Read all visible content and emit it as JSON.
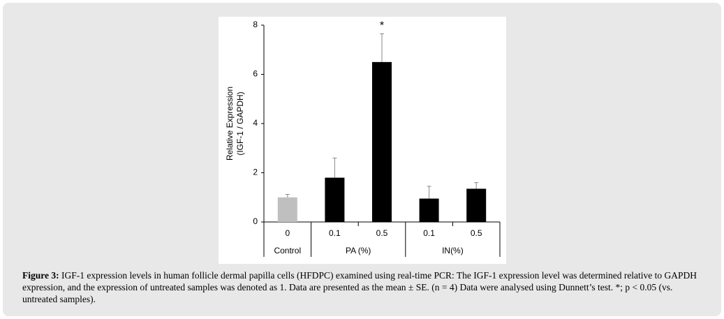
{
  "chart_data": {
    "type": "bar",
    "y_label_lines": [
      "Relative Expression",
      "(IGF-1 / GAPDH)"
    ],
    "groups": [
      {
        "name": "Control",
        "categories": [
          "0"
        ]
      },
      {
        "name": "PA (%)",
        "categories": [
          "0.1",
          "0.5"
        ]
      },
      {
        "name": "IN(%)",
        "categories": [
          "0.1",
          "0.5"
        ]
      }
    ],
    "values": [
      1.0,
      1.8,
      6.5,
      0.95,
      1.35
    ],
    "errors": [
      0.12,
      0.8,
      1.15,
      0.5,
      0.25
    ],
    "colors": [
      "#bfbfbf",
      "#000000",
      "#000000",
      "#000000",
      "#000000"
    ],
    "significance": [
      null,
      null,
      "*",
      null,
      null
    ],
    "ylim": [
      0,
      8
    ],
    "yticks": [
      0,
      2,
      4,
      6,
      8
    ]
  },
  "caption": {
    "label": "Figure 3:",
    "text": "IGF-1 expression levels in human follicle dermal papilla cells (HFDPC) examined using real-time PCR: The IGF-1 expression level was determined relative to GAPDH expression, and the expression of untreated samples was denoted as 1. Data are presented as the mean ± SE. (n = 4) Data were analysed using Dunnett’s test. *; p < 0.05 (vs. untreated samples)."
  }
}
